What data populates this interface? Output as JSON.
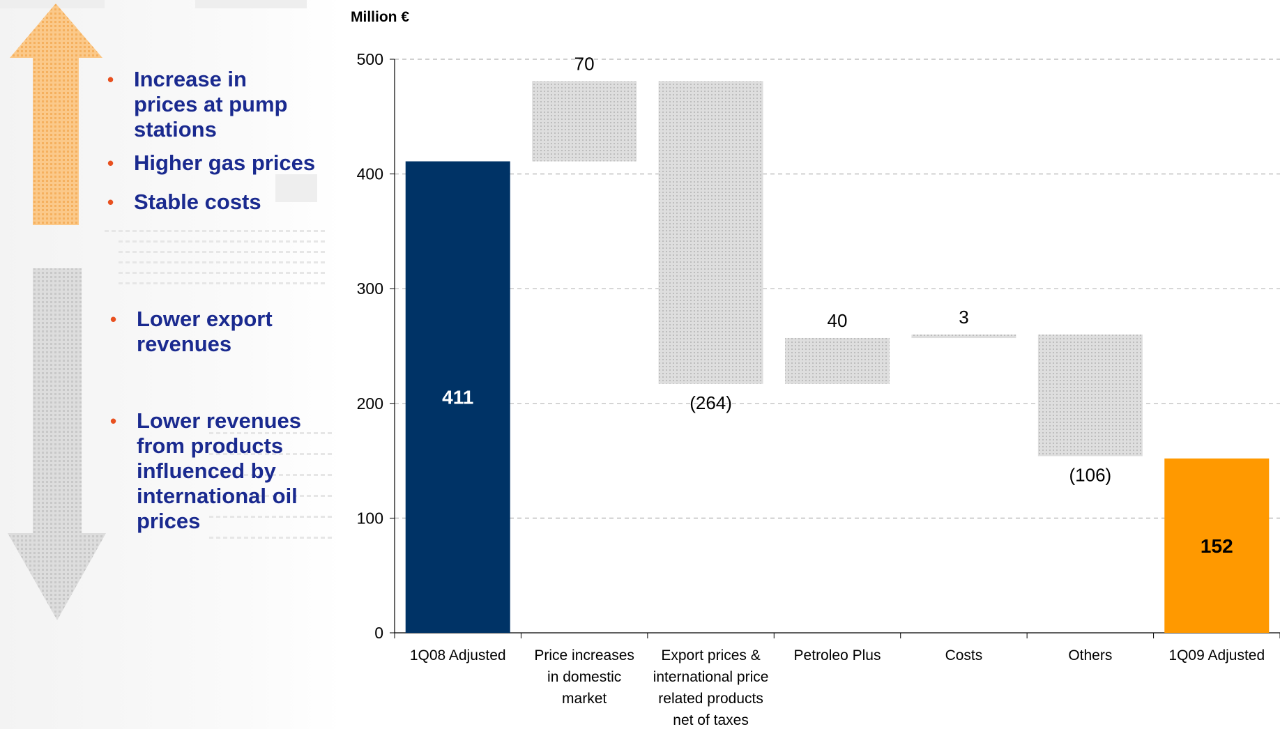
{
  "unit_label": "Million €",
  "left_panel": {
    "up_bullets": [
      "Increase in prices at pump stations",
      "Higher gas prices",
      "Stable costs"
    ],
    "down_bullets": [
      "Lower export revenues",
      "Lower revenues from products influenced by international oil prices"
    ]
  },
  "chart_data": {
    "type": "bar",
    "subtype": "waterfall",
    "title": "",
    "ylabel": "Million €",
    "ylim": [
      0,
      500
    ],
    "yticks": [
      0,
      100,
      200,
      300,
      400,
      500
    ],
    "grid": true,
    "categories": [
      [
        "1Q08 Adjusted"
      ],
      [
        "Price increases",
        "in domestic",
        "market"
      ],
      [
        "Export prices &",
        "international price",
        "related products",
        "net of taxes"
      ],
      [
        "Petroleo Plus"
      ],
      [
        "Costs"
      ],
      [
        "Others"
      ],
      [
        "1Q09 Adjusted"
      ]
    ],
    "bars": [
      {
        "kind": "total",
        "start": 0,
        "end": 411,
        "label": "411",
        "label_pos": "inside",
        "color": "#003366"
      },
      {
        "kind": "delta",
        "start": 411,
        "end": 481,
        "label": "70",
        "label_pos": "above",
        "color": "#d4d4d4"
      },
      {
        "kind": "delta",
        "start": 481,
        "end": 217,
        "label": "(264)",
        "label_pos": "below",
        "color": "#d4d4d4"
      },
      {
        "kind": "delta",
        "start": 217,
        "end": 257,
        "label": "40",
        "label_pos": "above",
        "color": "#d4d4d4"
      },
      {
        "kind": "delta",
        "start": 257,
        "end": 260,
        "label": "3",
        "label_pos": "above",
        "color": "#d4d4d4"
      },
      {
        "kind": "delta",
        "start": 260,
        "end": 154,
        "label": "(106)",
        "label_pos": "below",
        "color": "#d4d4d4"
      },
      {
        "kind": "total",
        "start": 0,
        "end": 152,
        "label": "152",
        "label_pos": "inside",
        "color": "#ff9900"
      }
    ]
  }
}
